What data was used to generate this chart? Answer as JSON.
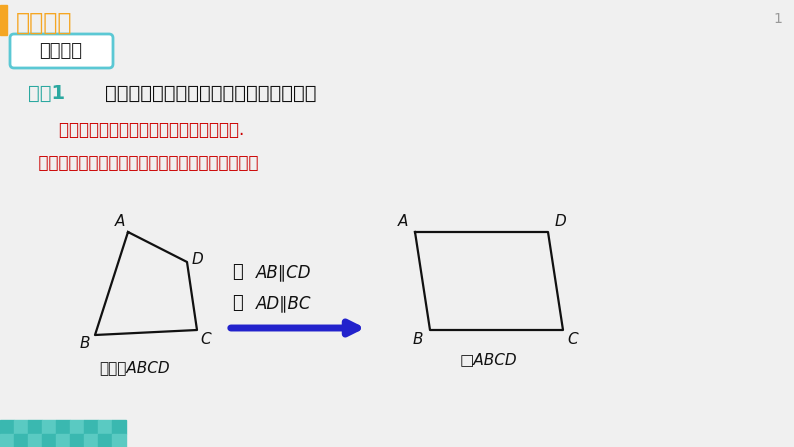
{
  "bg_color": "#f0f0f0",
  "title_bar_color": "#f5a623",
  "title_text": "新课导入",
  "title_text_color": "#f5a623",
  "subtitle_text": "复习引入",
  "subtitle_border_color": "#5bc8d4",
  "question_label": "问题1",
  "question_label_color": "#2ba8a0",
  "question_text": "    平行四边形的定义是什么？有什么作用？",
  "question_text_color": "#111111",
  "answer1_text": "    两组对边分别平行的四边形叫平行四边形.",
  "answer1_color": "#cc0000",
  "answer2_text": "  可以用平行四边形的定义来判定平行四边形，如：",
  "answer2_color": "#cc0000",
  "arrow_color": "#2222cc",
  "para_label_sq": "□ABCD",
  "quad_label": "四边形ABCD",
  "page_number": "1",
  "teal_color": "#3ab8b0"
}
